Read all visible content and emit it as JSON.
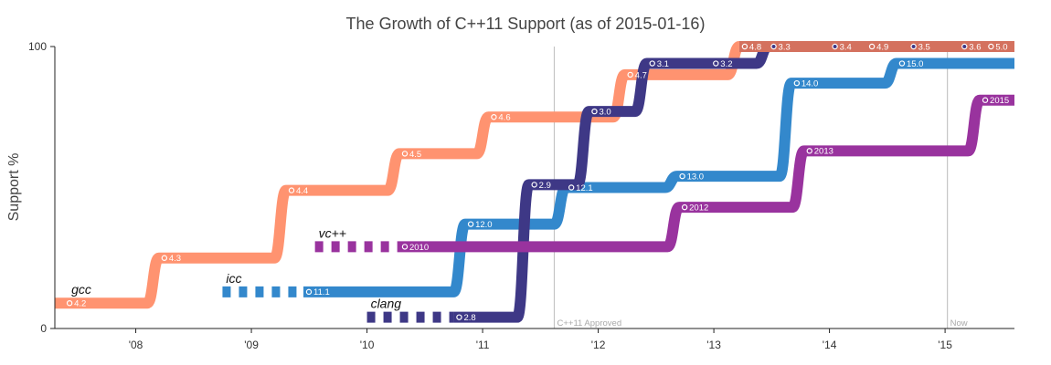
{
  "chart_data": {
    "type": "line",
    "title": "The Growth of C++11 Support (as of 2015-01-16)",
    "xlabel": "",
    "ylabel": "Support %",
    "xlim": [
      2007.3,
      2015.6
    ],
    "ylim": [
      0,
      100
    ],
    "x_ticks": [
      {
        "value": 2008,
        "label": "'08"
      },
      {
        "value": 2009,
        "label": "'09"
      },
      {
        "value": 2010,
        "label": "'10"
      },
      {
        "value": 2011,
        "label": "'11"
      },
      {
        "value": 2012,
        "label": "'12"
      },
      {
        "value": 2013,
        "label": "'13"
      },
      {
        "value": 2014,
        "label": "'14"
      },
      {
        "value": 2015,
        "label": "'15"
      }
    ],
    "y_ticks": [
      {
        "value": 0,
        "label": "0"
      },
      {
        "value": 100,
        "label": "100"
      }
    ],
    "grid": false,
    "legend": "inline series labels",
    "annotations": [
      {
        "x": 2011.62,
        "text": "C++11 Approved"
      },
      {
        "x": 2015.02,
        "text": "Now"
      }
    ],
    "series": [
      {
        "name": "gcc",
        "color": "#ff9370",
        "prerelease": null,
        "releases": [
          {
            "label": "4.2",
            "date": 2007.38,
            "value": 9
          },
          {
            "label": "4.3",
            "date": 2008.2,
            "value": 25
          },
          {
            "label": "4.4",
            "date": 2009.3,
            "value": 49
          },
          {
            "label": "4.5",
            "date": 2010.28,
            "value": 62
          },
          {
            "label": "4.6",
            "date": 2011.05,
            "value": 75
          },
          {
            "label": "4.7",
            "date": 2012.23,
            "value": 90
          },
          {
            "label": "4.8",
            "date": 2013.22,
            "value": 100
          }
        ]
      },
      {
        "name": "icc",
        "color": "#3388cc",
        "prerelease": {
          "from": 2008.75,
          "to": 2009.45
        },
        "releases": [
          {
            "label": "11.1",
            "date": 2009.45,
            "value": 13
          },
          {
            "label": "12.0",
            "date": 2010.85,
            "value": 37
          },
          {
            "label": "12.1",
            "date": 2011.72,
            "value": 50
          },
          {
            "label": "13.0",
            "date": 2012.68,
            "value": 54
          },
          {
            "label": "14.0",
            "date": 2013.67,
            "value": 87
          },
          {
            "label": "15.0",
            "date": 2014.58,
            "value": 94
          }
        ]
      },
      {
        "name": "clang",
        "color": "#3e3886",
        "prerelease": {
          "from": 2010.0,
          "to": 2010.75
        },
        "releases": [
          {
            "label": "2.8",
            "date": 2010.75,
            "value": 4
          },
          {
            "label": "2.9",
            "date": 2011.4,
            "value": 51
          },
          {
            "label": "3.0",
            "date": 2011.92,
            "value": 77
          },
          {
            "label": "3.1",
            "date": 2012.42,
            "value": 94
          },
          {
            "label": "3.2",
            "date": 2012.97,
            "value": 94
          },
          {
            "label": "3.3",
            "date": 2013.47,
            "value": 100
          },
          {
            "label": "3.4",
            "date": 2014.0,
            "value": 100
          },
          {
            "label": "3.5",
            "date": 2014.68,
            "value": 100
          },
          {
            "label": "3.6",
            "date": 2015.12,
            "value": 100
          }
        ]
      },
      {
        "name": "vc++",
        "color": "#99339e",
        "prerelease": {
          "from": 2009.55,
          "to": 2010.28
        },
        "releases": [
          {
            "label": "2010",
            "date": 2010.28,
            "value": 29
          },
          {
            "label": "2012",
            "date": 2012.7,
            "value": 43
          },
          {
            "label": "2013",
            "date": 2013.78,
            "value": 63
          },
          {
            "label": "2015",
            "date": 2015.3,
            "value": 81
          }
        ]
      },
      {
        "name": "",
        "color": "#d4715e",
        "prerelease": null,
        "releases": [
          {
            "label": "4.9",
            "date": 2014.32,
            "value": 100
          },
          {
            "label": "5.0",
            "date": 2015.35,
            "value": 100
          }
        ]
      }
    ]
  }
}
